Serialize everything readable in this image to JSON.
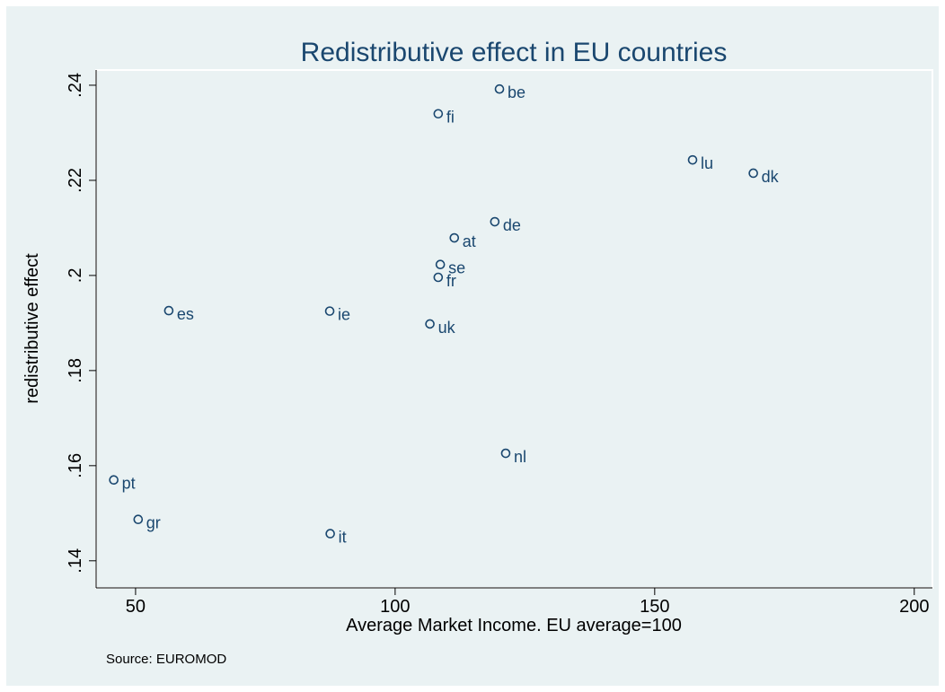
{
  "chart_data": {
    "type": "scatter",
    "title": "Redistributive effect in EU countries",
    "x_label": "Average Market Income. EU average=100",
    "y_label": "redistributive effect",
    "note": "Source: EUROMOD",
    "labels": [
      "be",
      "fi",
      "lu",
      "dk",
      "de",
      "at",
      "se",
      "fr",
      "es",
      "ie",
      "uk",
      "nl",
      "pt",
      "gr",
      "it"
    ],
    "x": [
      120.1,
      108.3,
      157.3,
      169.0,
      119.2,
      111.4,
      108.7,
      108.3,
      56.4,
      87.4,
      106.7,
      121.3,
      45.8,
      50.5,
      87.5
    ],
    "y": [
      0.2392,
      0.234,
      0.2243,
      0.2215,
      0.2113,
      0.2079,
      0.2023,
      0.1996,
      0.1926,
      0.1925,
      0.1898,
      0.1626,
      0.157,
      0.1487,
      0.1457
    ],
    "color": "#1a476f",
    "xlim": [
      42.4,
      203.5
    ],
    "ylim": [
      0.1343,
      0.2432
    ],
    "xticks": [
      50,
      100,
      150,
      200
    ],
    "yticks": [
      {
        "value": 0.14,
        "label": ".14"
      },
      {
        "value": 0.16,
        "label": ".16"
      },
      {
        "value": 0.18,
        "label": ".18"
      },
      {
        "value": 0.2,
        "label": ".2"
      },
      {
        "value": 0.22,
        "label": ".22"
      },
      {
        "value": 0.24,
        "label": ".24"
      }
    ]
  }
}
